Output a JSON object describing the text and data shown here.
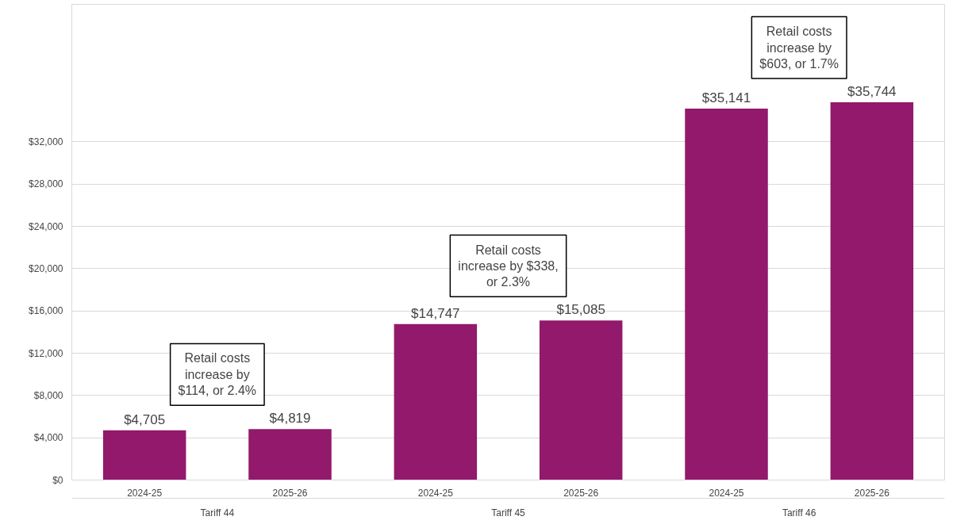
{
  "chart_data": {
    "type": "bar",
    "categories": [
      "2024-25",
      "2025-26",
      "2024-25",
      "2025-26",
      "2024-25",
      "2025-26"
    ],
    "values": [
      4705,
      4819,
      14747,
      15085,
      35141,
      35744
    ],
    "value_labels": [
      "$4,705",
      "$4,819",
      "$14,747",
      "$15,085",
      "$35,141",
      "$35,744"
    ],
    "color": "#92196b",
    "ylim": [
      0,
      45000
    ],
    "yticks": [
      {
        "value": 0,
        "label": "$0"
      },
      {
        "value": 4000,
        "label": "$4,000"
      },
      {
        "value": 8000,
        "label": "$8,000"
      },
      {
        "value": 12000,
        "label": "$12,000"
      },
      {
        "value": 16000,
        "label": "$16,000"
      },
      {
        "value": 20000,
        "label": "$20,000"
      },
      {
        "value": 24000,
        "label": "$24,000"
      },
      {
        "value": 28000,
        "label": "$28,000"
      },
      {
        "value": 32000,
        "label": "$32,000"
      }
    ],
    "grid": "y",
    "annotations": [
      "Retail costs\nincrease by\n$114, or 2.4%",
      "Retail costs\nincrease by $338,\nor 2.3%",
      "Retail costs\nincrease by\n$603, or 1.7%",
      "Tariff 44",
      "Tariff 45",
      "Tariff 46"
    ]
  }
}
